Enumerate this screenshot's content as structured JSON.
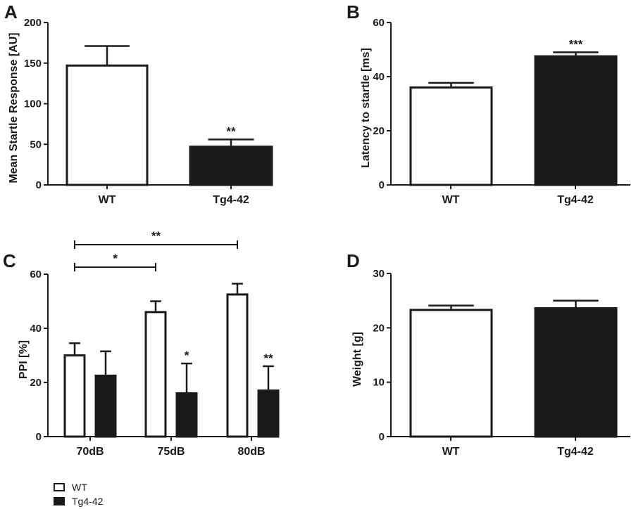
{
  "chart_data": [
    {
      "panel": "A",
      "type": "bar",
      "categories": [
        "WT",
        "Tg4-42"
      ],
      "values": [
        147,
        47
      ],
      "errors": [
        24,
        9
      ],
      "ylabel": "Mean Startle  Response [AU]",
      "ylim": [
        0,
        200
      ],
      "yticks": [
        0,
        50,
        100,
        150,
        200
      ],
      "significance": [
        {
          "category": "Tg4-42",
          "label": "**"
        }
      ]
    },
    {
      "panel": "B",
      "type": "bar",
      "categories": [
        "WT",
        "Tg4-42"
      ],
      "values": [
        36,
        47.5
      ],
      "errors": [
        1.7,
        1.5
      ],
      "ylabel": "Latency to startle [ms]",
      "ylim": [
        0,
        60
      ],
      "yticks": [
        0,
        20,
        40,
        60
      ],
      "significance": [
        {
          "category": "Tg4-42",
          "label": "***"
        }
      ]
    },
    {
      "panel": "C",
      "type": "bar",
      "categories": [
        "70dB",
        "75dB",
        "80dB"
      ],
      "series": [
        {
          "name": "WT",
          "values": [
            30,
            46,
            52.5
          ],
          "errors": [
            4.5,
            4,
            4
          ]
        },
        {
          "name": "Tg4-42",
          "values": [
            22.5,
            16,
            17
          ],
          "errors": [
            9,
            11,
            9
          ]
        }
      ],
      "ylabel": "PPI [%]",
      "ylim": [
        0,
        60
      ],
      "yticks": [
        0,
        20,
        40,
        60
      ],
      "significance": [
        {
          "category": "75dB",
          "series": "Tg4-42",
          "label": "*"
        },
        {
          "category": "80dB",
          "series": "Tg4-42",
          "label": "**"
        }
      ],
      "brackets": [
        {
          "from": "70dB",
          "to": "75dB",
          "label": "*"
        },
        {
          "from": "70dB",
          "to": "80dB",
          "label": "**"
        }
      ]
    },
    {
      "panel": "D",
      "type": "bar",
      "categories": [
        "WT",
        "Tg4-42"
      ],
      "values": [
        23.3,
        23.6
      ],
      "errors": [
        0.8,
        1.4
      ],
      "ylabel": "Weight [g]",
      "ylim": [
        0,
        30
      ],
      "yticks": [
        0,
        10,
        20,
        30
      ],
      "significance": []
    }
  ],
  "legend": [
    {
      "label": "WT",
      "fill": "white"
    },
    {
      "label": "Tg4-42",
      "fill": "black"
    }
  ],
  "colors": {
    "wt_fill": "#ffffff",
    "tg_fill": "#1a1a1a",
    "stroke": "#1a1a1a"
  }
}
